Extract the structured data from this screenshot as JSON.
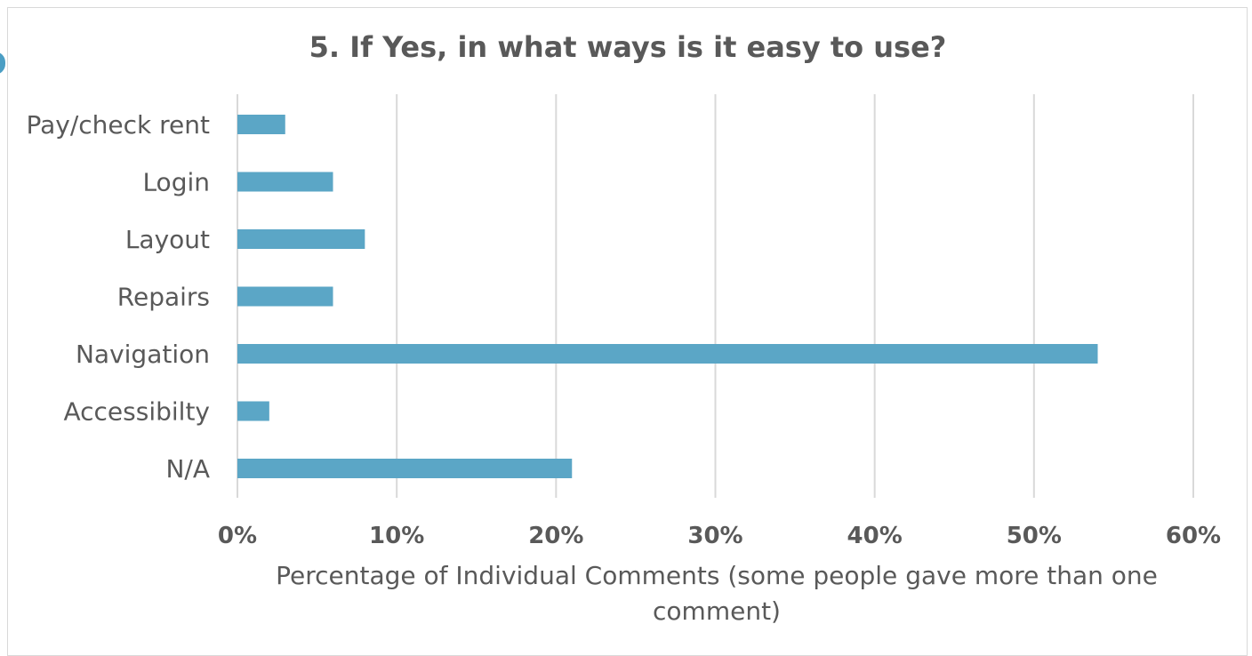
{
  "chart_data": {
    "type": "bar",
    "orientation": "horizontal",
    "title": "5. If Yes, in what ways is it easy to use?",
    "categories": [
      "Pay/check rent",
      "Login",
      "Layout",
      "Repairs",
      "Navigation",
      "Accessibilty",
      "N/A"
    ],
    "values": [
      3,
      6,
      8,
      6,
      54,
      2,
      21
    ],
    "value_unit": "%",
    "xlabel_lines": [
      "Percentage of Individual Comments (some people gave more than one",
      "comment)"
    ],
    "ylabel": "",
    "xlim": [
      0,
      60
    ],
    "x_ticks": [
      0,
      10,
      20,
      30,
      40,
      50,
      60
    ],
    "x_tick_labels": [
      "0%",
      "10%",
      "20%",
      "30%",
      "40%",
      "50%",
      "60%"
    ],
    "grid": "vertical",
    "legend": "none",
    "bar_color": "#5ba6c6",
    "grid_color": "#d9d9d9",
    "text_color": "#595959",
    "accent_color": "#4b9ec4"
  }
}
